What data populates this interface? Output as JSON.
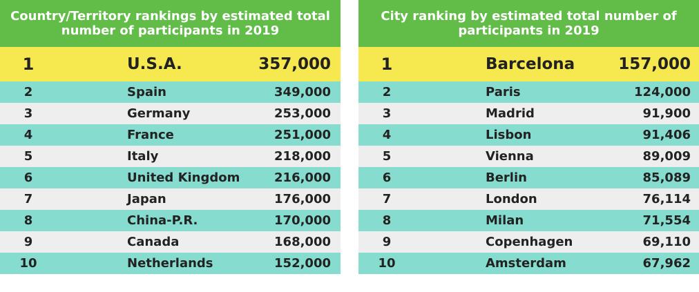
{
  "chart_data": [
    {
      "type": "table",
      "title": "Country/Territory rankings by estimated total number of participants in 2019",
      "columns": [
        "rank",
        "name",
        "participants"
      ],
      "rows": [
        {
          "rank": "1",
          "name": "U.S.A.",
          "value": "357,000"
        },
        {
          "rank": "2",
          "name": "Spain",
          "value": "349,000"
        },
        {
          "rank": "3",
          "name": "Germany",
          "value": "253,000"
        },
        {
          "rank": "4",
          "name": "France",
          "value": "251,000"
        },
        {
          "rank": "5",
          "name": "Italy",
          "value": "218,000"
        },
        {
          "rank": "6",
          "name": "United Kingdom",
          "value": "216,000"
        },
        {
          "rank": "7",
          "name": "Japan",
          "value": "176,000"
        },
        {
          "rank": "8",
          "name": "China-P.R.",
          "value": "170,000"
        },
        {
          "rank": "9",
          "name": "Canada",
          "value": "168,000"
        },
        {
          "rank": "10",
          "name": "Netherlands",
          "value": "152,000"
        }
      ]
    },
    {
      "type": "table",
      "title": "City ranking by estimated total number of participants in 2019",
      "columns": [
        "rank",
        "name",
        "participants"
      ],
      "rows": [
        {
          "rank": "1",
          "name": "Barcelona",
          "value": "157,000"
        },
        {
          "rank": "2",
          "name": "Paris",
          "value": "124,000"
        },
        {
          "rank": "3",
          "name": "Madrid",
          "value": "91,900"
        },
        {
          "rank": "4",
          "name": "Lisbon",
          "value": "91,406"
        },
        {
          "rank": "5",
          "name": "Vienna",
          "value": "89,009"
        },
        {
          "rank": "6",
          "name": "Berlin",
          "value": "85,089"
        },
        {
          "rank": "7",
          "name": "London",
          "value": "76,114"
        },
        {
          "rank": "8",
          "name": "Milan",
          "value": "71,554"
        },
        {
          "rank": "9",
          "name": "Copenhagen",
          "value": "69,110"
        },
        {
          "rank": "10",
          "name": "Amsterdam",
          "value": "67,962"
        }
      ]
    }
  ],
  "colors": {
    "header": "#62bd48",
    "highlight": "#f6e84f",
    "teal_row": "#86dccf",
    "gray_row": "#eeeeee"
  }
}
